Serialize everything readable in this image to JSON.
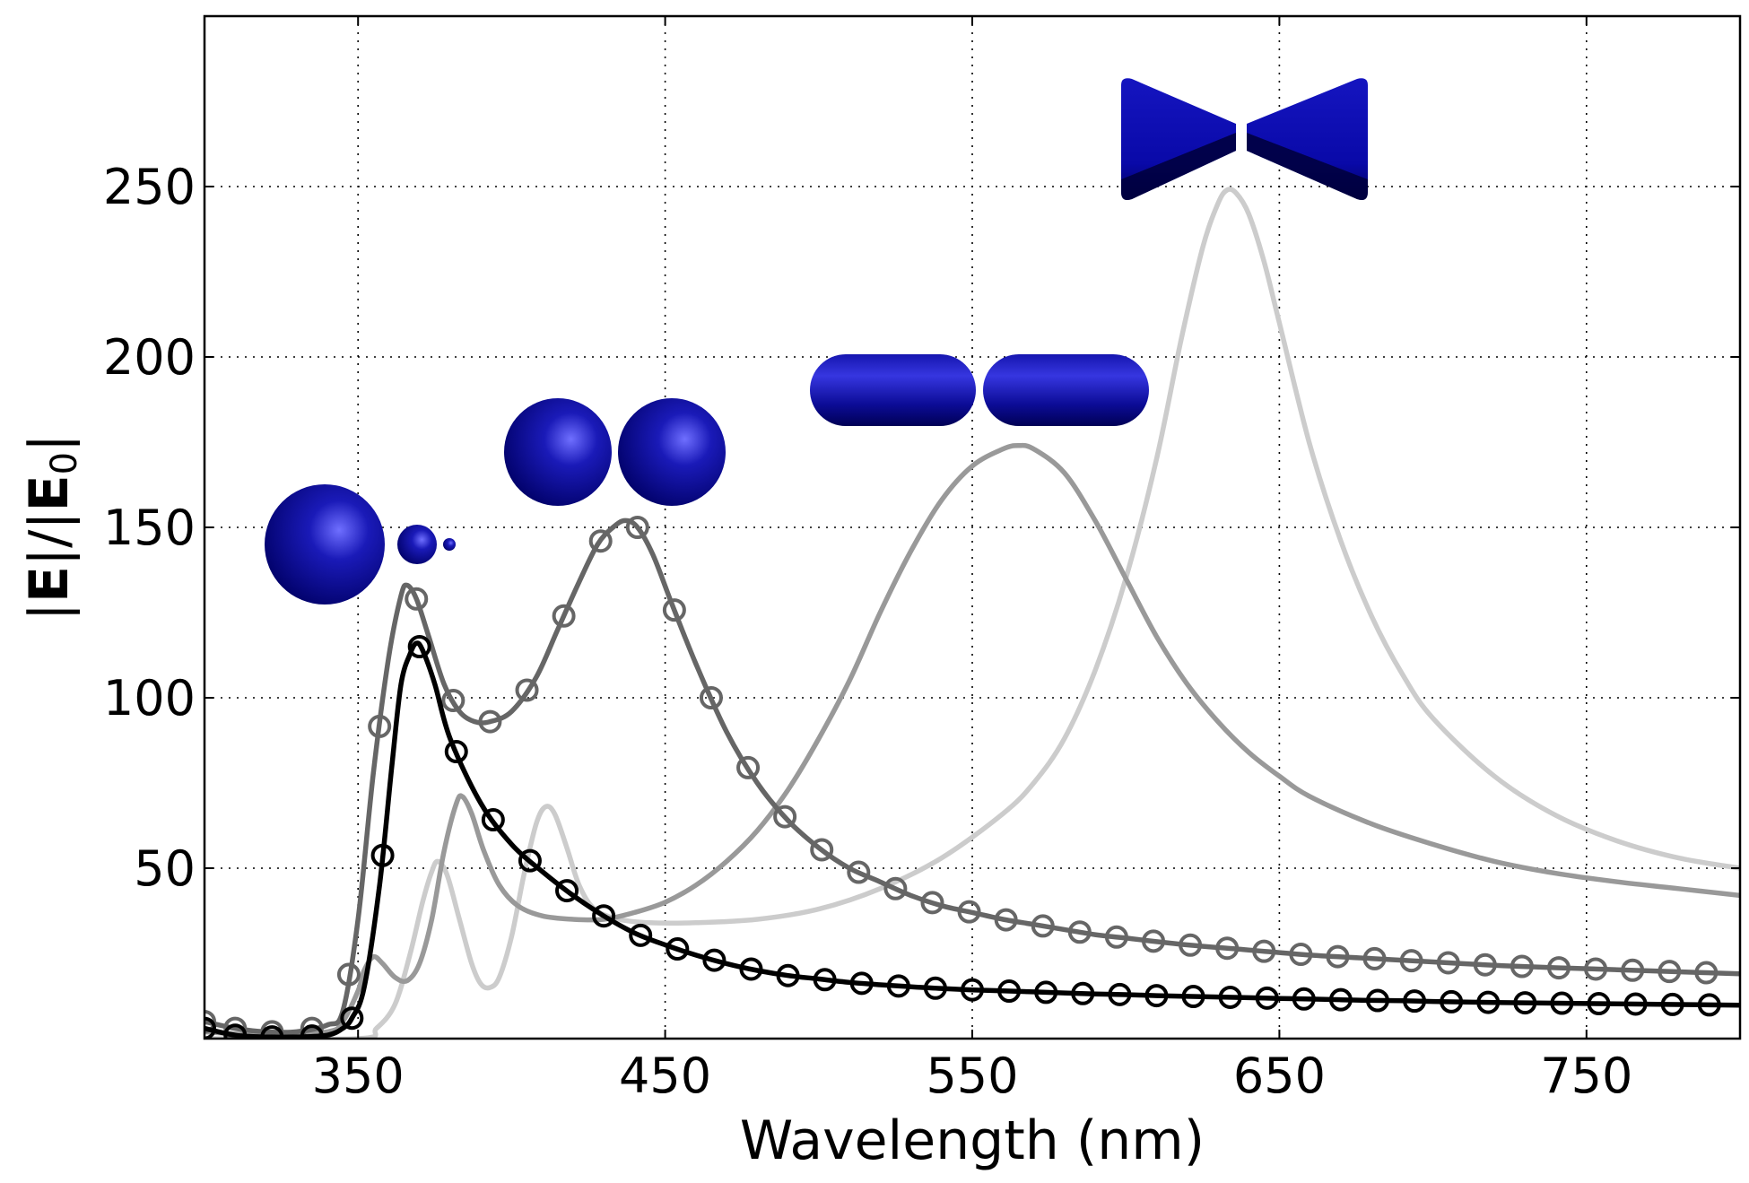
{
  "chart_data": {
    "type": "line",
    "title": "",
    "xlabel": "Wavelength (nm)",
    "ylabel_parts": {
      "bar1": "|",
      "E1": "E",
      "mid": "|/|",
      "E0": "E",
      "sub": "0",
      "bar2": "|"
    },
    "xlim": [
      300,
      800
    ],
    "ylim": [
      0,
      300
    ],
    "xticks": [
      "350",
      "450",
      "550",
      "650",
      "750"
    ],
    "yticks": [
      "50",
      "100",
      "150",
      "200",
      "250"
    ],
    "grid": true,
    "legend": "none",
    "colors": {
      "black": "#000000",
      "dark_gray": "#666666",
      "mid_gray": "#999999",
      "light_gray": "#cccccc",
      "nanoparticle_blue": "#0a0a8c"
    },
    "insets": [
      "sphere-trimer-icon",
      "sphere-dimer-icon",
      "rod-dimer-icon",
      "bowtie-icon"
    ],
    "series": [
      {
        "color": "#000000",
        "marker": "circle",
        "points": [
          [
            300,
            3
          ],
          [
            310,
            1
          ],
          [
            320,
            0.5
          ],
          [
            330,
            0.5
          ],
          [
            340,
            1
          ],
          [
            345,
            3
          ],
          [
            348,
            6
          ],
          [
            352,
            15
          ],
          [
            357,
            45
          ],
          [
            361,
            80
          ],
          [
            364,
            104
          ],
          [
            367,
            113
          ],
          [
            369,
            116
          ],
          [
            371,
            114
          ],
          [
            375,
            104
          ],
          [
            380,
            88
          ],
          [
            390,
            69
          ],
          [
            400,
            57
          ],
          [
            410,
            49
          ],
          [
            420,
            42
          ],
          [
            430,
            36
          ],
          [
            440,
            31
          ],
          [
            450,
            27.5
          ],
          [
            460,
            24.5
          ],
          [
            470,
            22
          ],
          [
            480,
            20
          ],
          [
            490,
            18.5
          ],
          [
            500,
            17.5
          ],
          [
            510,
            16.5
          ],
          [
            520,
            15.8
          ],
          [
            530,
            15.2
          ],
          [
            540,
            14.7
          ],
          [
            550,
            14.3
          ],
          [
            560,
            14
          ],
          [
            570,
            13.7
          ],
          [
            580,
            13.4
          ],
          [
            590,
            13.1
          ],
          [
            600,
            12.9
          ],
          [
            610,
            12.6
          ],
          [
            620,
            12.4
          ],
          [
            630,
            12.2
          ],
          [
            640,
            12
          ],
          [
            650,
            11.8
          ],
          [
            660,
            11.6
          ],
          [
            670,
            11.4
          ],
          [
            680,
            11.2
          ],
          [
            690,
            11.1
          ],
          [
            700,
            10.9
          ],
          [
            720,
            10.6
          ],
          [
            740,
            10.4
          ],
          [
            760,
            10.2
          ],
          [
            780,
            10
          ],
          [
            800,
            9.8
          ]
        ],
        "marker_x": [
          300,
          310,
          322,
          335,
          348,
          358,
          370,
          382,
          394,
          406,
          418,
          430,
          442,
          454,
          466,
          478,
          490,
          502,
          514,
          526,
          538,
          550,
          562,
          574,
          586,
          598,
          610,
          622,
          634,
          646,
          658,
          670,
          682,
          694,
          706,
          718,
          730,
          742,
          754,
          766,
          778,
          790
        ]
      },
      {
        "color": "#666666",
        "marker": "circle",
        "points": [
          [
            300,
            5
          ],
          [
            310,
            3
          ],
          [
            320,
            2
          ],
          [
            330,
            2
          ],
          [
            340,
            4
          ],
          [
            345,
            8
          ],
          [
            350,
            35
          ],
          [
            355,
            78
          ],
          [
            360,
            112
          ],
          [
            364,
            130
          ],
          [
            366,
            133
          ],
          [
            369,
            129
          ],
          [
            373,
            118
          ],
          [
            378,
            104
          ],
          [
            383,
            96
          ],
          [
            388,
            93
          ],
          [
            393,
            93
          ],
          [
            400,
            96
          ],
          [
            408,
            106
          ],
          [
            415,
            120
          ],
          [
            422,
            134
          ],
          [
            428,
            145
          ],
          [
            433,
            150
          ],
          [
            437,
            152
          ],
          [
            441,
            150
          ],
          [
            446,
            142
          ],
          [
            452,
            128
          ],
          [
            460,
            110
          ],
          [
            470,
            90
          ],
          [
            480,
            75
          ],
          [
            490,
            64
          ],
          [
            500,
            56
          ],
          [
            510,
            50
          ],
          [
            520,
            46
          ],
          [
            530,
            42
          ],
          [
            540,
            39
          ],
          [
            550,
            37
          ],
          [
            560,
            35
          ],
          [
            570,
            33.5
          ],
          [
            580,
            32
          ],
          [
            590,
            30.5
          ],
          [
            600,
            29.5
          ],
          [
            620,
            27.5
          ],
          [
            640,
            26
          ],
          [
            660,
            24.5
          ],
          [
            680,
            23.5
          ],
          [
            700,
            22.5
          ],
          [
            720,
            21.5
          ],
          [
            740,
            20.8
          ],
          [
            760,
            20.2
          ],
          [
            780,
            19.6
          ],
          [
            800,
            19
          ]
        ],
        "marker_x": [
          300,
          310,
          322,
          335,
          347,
          357,
          369,
          381,
          393,
          405,
          417,
          429,
          441,
          453,
          465,
          477,
          489,
          501,
          513,
          525,
          537,
          549,
          561,
          573,
          585,
          597,
          609,
          621,
          633,
          645,
          657,
          669,
          681,
          693,
          705,
          717,
          729,
          741,
          753,
          765,
          777,
          789
        ]
      },
      {
        "color": "#999999",
        "marker": "none",
        "points": [
          [
            300,
            2
          ],
          [
            320,
            1
          ],
          [
            340,
            2
          ],
          [
            345,
            5
          ],
          [
            350,
            14
          ],
          [
            352,
            20
          ],
          [
            355,
            24
          ],
          [
            358,
            22
          ],
          [
            362,
            18
          ],
          [
            366,
            17
          ],
          [
            370,
            22
          ],
          [
            374,
            35
          ],
          [
            378,
            55
          ],
          [
            382,
            69
          ],
          [
            384,
            71
          ],
          [
            387,
            66
          ],
          [
            391,
            55
          ],
          [
            396,
            45
          ],
          [
            402,
            39
          ],
          [
            410,
            36
          ],
          [
            420,
            35
          ],
          [
            430,
            35
          ],
          [
            440,
            37
          ],
          [
            450,
            40
          ],
          [
            460,
            45
          ],
          [
            470,
            52
          ],
          [
            480,
            61
          ],
          [
            490,
            73
          ],
          [
            500,
            88
          ],
          [
            510,
            105
          ],
          [
            520,
            125
          ],
          [
            530,
            143
          ],
          [
            540,
            158
          ],
          [
            550,
            168
          ],
          [
            560,
            173
          ],
          [
            565,
            174
          ],
          [
            570,
            173
          ],
          [
            580,
            166
          ],
          [
            590,
            152
          ],
          [
            600,
            135
          ],
          [
            610,
            118
          ],
          [
            620,
            104
          ],
          [
            630,
            93
          ],
          [
            640,
            84
          ],
          [
            650,
            77
          ],
          [
            660,
            71
          ],
          [
            680,
            63
          ],
          [
            700,
            57
          ],
          [
            720,
            52
          ],
          [
            740,
            48.5
          ],
          [
            760,
            46
          ],
          [
            780,
            44
          ],
          [
            800,
            42
          ]
        ]
      },
      {
        "color": "#cccccc",
        "marker": "none",
        "points": [
          [
            300,
            0
          ],
          [
            350,
            0
          ],
          [
            356,
            3
          ],
          [
            362,
            10
          ],
          [
            367,
            25
          ],
          [
            371,
            40
          ],
          [
            374,
            49
          ],
          [
            376,
            52
          ],
          [
            379,
            48
          ],
          [
            383,
            35
          ],
          [
            387,
            22
          ],
          [
            390,
            16
          ],
          [
            393,
            15
          ],
          [
            396,
            18
          ],
          [
            400,
            30
          ],
          [
            404,
            48
          ],
          [
            408,
            63
          ],
          [
            411,
            68
          ],
          [
            414,
            66
          ],
          [
            418,
            56
          ],
          [
            422,
            45
          ],
          [
            427,
            38
          ],
          [
            435,
            35
          ],
          [
            445,
            34
          ],
          [
            460,
            34
          ],
          [
            480,
            35
          ],
          [
            500,
            38
          ],
          [
            520,
            44
          ],
          [
            540,
            53
          ],
          [
            560,
            66
          ],
          [
            570,
            75
          ],
          [
            580,
            88
          ],
          [
            590,
            108
          ],
          [
            600,
            135
          ],
          [
            610,
            170
          ],
          [
            618,
            205
          ],
          [
            625,
            232
          ],
          [
            630,
            245
          ],
          [
            633,
            249
          ],
          [
            636,
            248
          ],
          [
            640,
            242
          ],
          [
            645,
            228
          ],
          [
            650,
            210
          ],
          [
            660,
            174
          ],
          [
            670,
            146
          ],
          [
            680,
            124
          ],
          [
            690,
            107
          ],
          [
            700,
            94
          ],
          [
            720,
            77
          ],
          [
            740,
            65.5
          ],
          [
            760,
            58
          ],
          [
            780,
            53
          ],
          [
            800,
            50
          ]
        ]
      }
    ]
  }
}
